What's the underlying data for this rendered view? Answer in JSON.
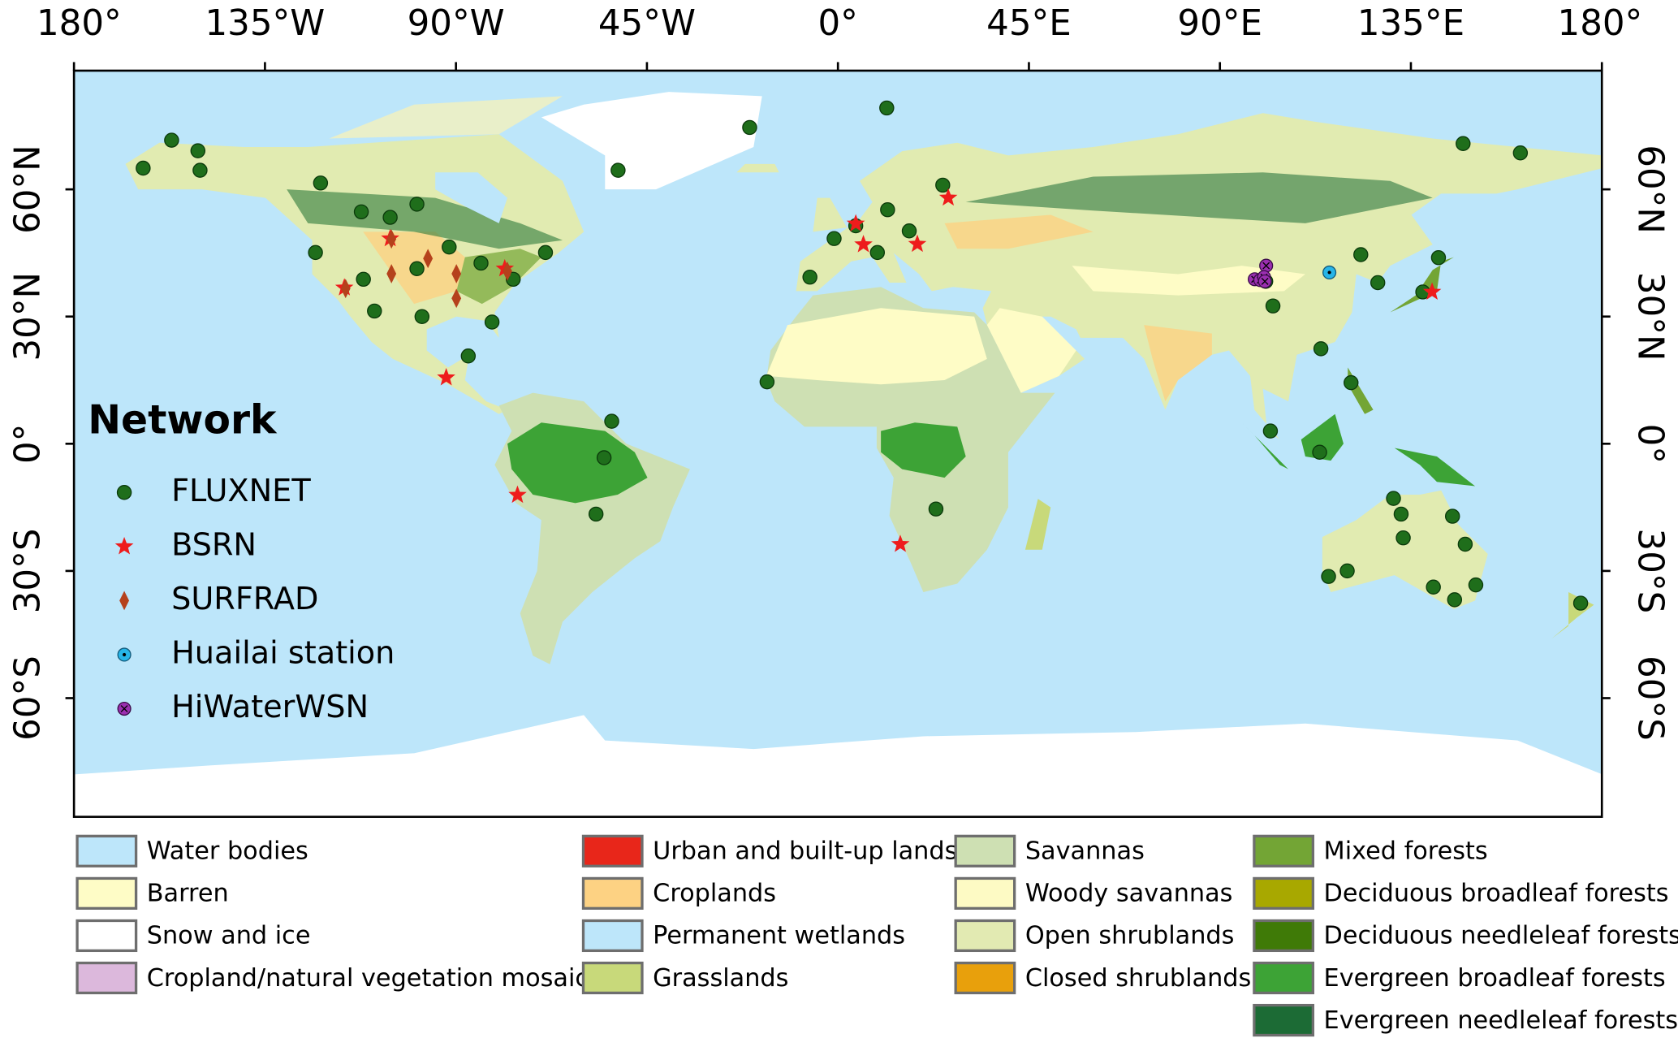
{
  "chart_data": {
    "type": "map",
    "xlim": [
      -180,
      180
    ],
    "ylim": [
      -88,
      88
    ],
    "xticks": [
      {
        "value": -180,
        "label": "180°"
      },
      {
        "value": -135,
        "label": "135°W"
      },
      {
        "value": -90,
        "label": "90°W"
      },
      {
        "value": -45,
        "label": "45°W"
      },
      {
        "value": 0,
        "label": "0°"
      },
      {
        "value": 45,
        "label": "45°E"
      },
      {
        "value": 90,
        "label": "90°E"
      },
      {
        "value": 135,
        "label": "135°E"
      },
      {
        "value": 180,
        "label": "180°"
      }
    ],
    "yticks": [
      {
        "value": 60,
        "label": "60°N"
      },
      {
        "value": 30,
        "label": "30°N"
      },
      {
        "value": 0,
        "label": "0°"
      },
      {
        "value": -30,
        "label": "30°S"
      },
      {
        "value": -60,
        "label": "60°S"
      }
    ],
    "legend_title": "Network",
    "series": [
      {
        "name": "FLUXNET",
        "color": "#1f6e1b",
        "marker": "circle",
        "x": [
          -163.7,
          -157,
          -150.8,
          -150.3,
          -121.9,
          -112.3,
          -105.5,
          -99.2,
          -123.1,
          -111.8,
          -99.2,
          -91.6,
          -84.1,
          -76.5,
          -68.9,
          -81.5,
          -98,
          -109.2,
          -87.1,
          -53.3,
          -55.1,
          -57,
          -51.8,
          -20.8,
          11.5,
          -16.7,
          -6.6,
          -0.9,
          4.2,
          11.7,
          9.3,
          16.8,
          24.7,
          23.1,
          100.8,
          102.5,
          113.8,
          123.2,
          127.2,
          141.5,
          137.8,
          120.9,
          101.9,
          113.5,
          147.3,
          160.8,
          130.9,
          132.7,
          144.8,
          133.2,
          147.8,
          115.6,
          120,
          140.3,
          145.3,
          150.3,
          175
        ],
        "values": [
          65,
          71.6,
          69.1,
          64.5,
          61.5,
          54.7,
          53.4,
          56.5,
          45.1,
          38.8,
          41.3,
          46.4,
          42.6,
          38.8,
          45.1,
          28.7,
          30,
          31.3,
          20.7,
          5.3,
          -3.3,
          -16.6,
          64.5,
          74.6,
          79.2,
          14.6,
          39.3,
          48.4,
          51.4,
          55.2,
          45.1,
          50.2,
          61,
          -15.4,
          38.3,
          32.5,
          22.4,
          44.6,
          38,
          43.9,
          35.8,
          14.4,
          3,
          -2,
          70.8,
          68.6,
          -12.9,
          -16.6,
          -17.1,
          -22.2,
          -23.7,
          -31.3,
          -30,
          -33.8,
          -36.8,
          -33.3,
          -37.6
        ]
      },
      {
        "name": "BSRN",
        "color": "#ee1c1c",
        "marker": "star",
        "x": [
          -116.3,
          -92.3,
          -75.5,
          -78.5,
          -105.5,
          4.2,
          18.7,
          26,
          14.7,
          140,
          6
        ],
        "values": [
          36.8,
          15.6,
          -12.1,
          41.3,
          48.4,
          51.9,
          47.1,
          58,
          -23.7,
          35.8,
          47
        ]
      },
      {
        "name": "SURFRAD",
        "color": "#b5411c",
        "marker": "diamond",
        "x": [
          -105.2,
          -89.9,
          -116,
          -77.9,
          -96.6,
          -105.2,
          -89.9
        ],
        "values": [
          40.1,
          40.1,
          36.6,
          40.7,
          43.7,
          48.3,
          34.3
        ]
      },
      {
        "name": "Huailai station",
        "color": "#27b5e8",
        "marker": "dot",
        "x": [
          115.8
        ],
        "values": [
          40.4
        ]
      },
      {
        "name": "HiWaterWSN",
        "color": "#9b2fb0",
        "marker": "cross",
        "x": [
          100.9,
          98.2,
          99.5,
          100.4,
          100.6
        ],
        "values": [
          42,
          38.8,
          38.6,
          39.3,
          38.3
        ]
      }
    ],
    "land_cover": [
      {
        "name": "Water bodies",
        "color": "#bde6fa"
      },
      {
        "name": "Barren",
        "color": "#fefcc6"
      },
      {
        "name": "Snow and ice",
        "color": "#ffffff"
      },
      {
        "name": "Cropland/natural vegetation mosaics",
        "color": "#dcb8dc"
      },
      {
        "name": "Urban and built-up lands",
        "color": "#e8261a"
      },
      {
        "name": "Croplands",
        "color": "#fdd283"
      },
      {
        "name": "Permanent wetlands",
        "color": "#bde6fa"
      },
      {
        "name": "Grasslands",
        "color": "#c8d97a"
      },
      {
        "name": "Savannas",
        "color": "#cee0b3"
      },
      {
        "name": "Woody savannas",
        "color": "#fdfac4"
      },
      {
        "name": "Open shrublands",
        "color": "#e2eab2"
      },
      {
        "name": "Closed shrublands",
        "color": "#e8a00c"
      },
      {
        "name": "Mixed forests",
        "color": "#73a535"
      },
      {
        "name": "Deciduous broadleaf forests",
        "color": "#a8a800"
      },
      {
        "name": "Deciduous needleleaf forests",
        "color": "#3f7a07"
      },
      {
        "name": "Evergreen broadleaf forests",
        "color": "#3da336"
      },
      {
        "name": "Evergreen needleleaf forests",
        "color": "#1c6b35"
      }
    ]
  }
}
